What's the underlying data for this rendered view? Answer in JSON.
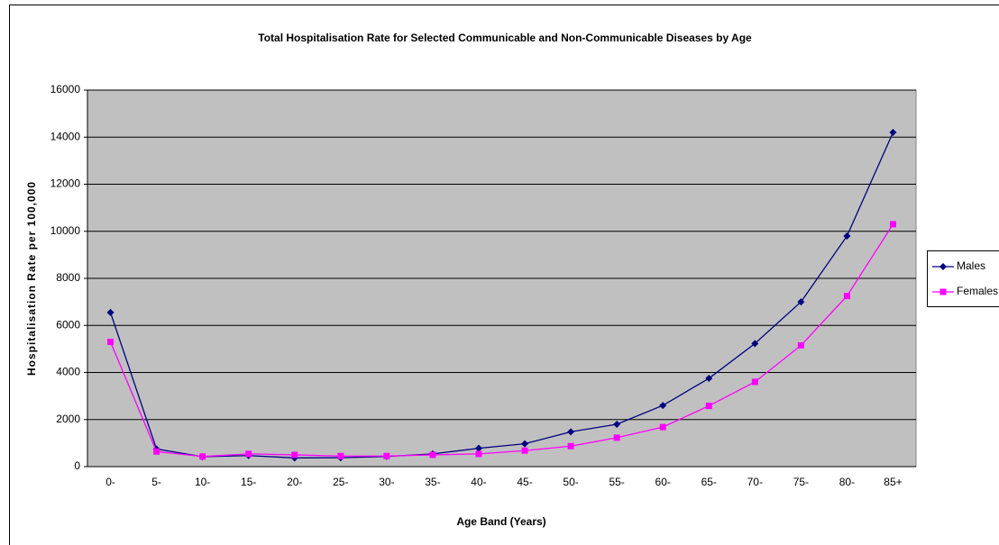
{
  "chart_data": {
    "type": "line",
    "title": "Total Hospitalisation Rate for Selected Communicable and Non-Communicable Diseases by Age",
    "x_label": "Age Band (Years)",
    "y_label": "Hospitalisation Rate per 100,000",
    "categories": [
      "0-",
      "5-",
      "10-",
      "15-",
      "20-",
      "25-",
      "30-",
      "35-",
      "40-",
      "45-",
      "50-",
      "55-",
      "60-",
      "65-",
      "70-",
      "75-",
      "80-",
      "85+"
    ],
    "series": [
      {
        "name": "Males",
        "color": "#000080",
        "marker": "diamond",
        "values": [
          6550,
          750,
          420,
          470,
          370,
          380,
          430,
          540,
          780,
          970,
          1480,
          1800,
          2600,
          3750,
          5230,
          7000,
          9800,
          14200
        ]
      },
      {
        "name": "Females",
        "color": "#ff00ff",
        "marker": "square",
        "values": [
          5300,
          640,
          430,
          540,
          500,
          450,
          450,
          500,
          540,
          680,
          870,
          1230,
          1680,
          2580,
          3600,
          5150,
          7250,
          10300
        ]
      }
    ],
    "ylim": [
      0,
      16000
    ],
    "yticks": [
      0,
      2000,
      4000,
      6000,
      8000,
      10000,
      12000,
      14000,
      16000
    ],
    "grid": true,
    "legend": "right"
  }
}
